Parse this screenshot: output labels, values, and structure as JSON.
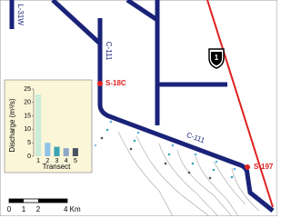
{
  "map": {
    "canal_labels": [
      "L-31W",
      "C-111",
      "C-111"
    ],
    "structure_labels": [
      "S-18C",
      "S-197"
    ],
    "highway_label": "1",
    "scale_labels": [
      "0",
      "1",
      "2",
      "4 Km"
    ]
  },
  "chart_data": {
    "type": "bar",
    "y_label": "Discharge (m³/s)",
    "x_label": "Transect",
    "categories": [
      "1",
      "2",
      "3",
      "4",
      "5"
    ],
    "values": [
      23,
      5,
      3.5,
      3,
      3
    ],
    "colors": [
      "#c8ecd8",
      "#8fc4e8",
      "#3aa6b4",
      "#8fa8c8",
      "#4a5060"
    ],
    "ylim": [
      0,
      25
    ],
    "yticks": [
      0,
      5,
      10,
      15,
      20,
      25
    ]
  }
}
